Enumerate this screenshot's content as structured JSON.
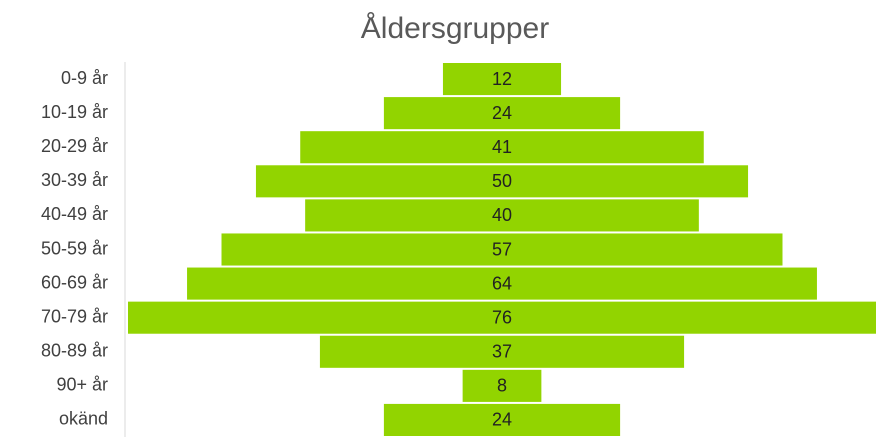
{
  "chart_data": {
    "type": "funnel",
    "title": "Åldersgrupper",
    "categories": [
      "0-9 år",
      "10-19 år",
      "20-29 år",
      "30-39 år",
      "40-49 år",
      "50-59 år",
      "60-69 år",
      "70-79 år",
      "80-89 år",
      "90+ år",
      "okänd"
    ],
    "values": [
      12,
      24,
      41,
      50,
      40,
      57,
      64,
      76,
      37,
      8,
      24
    ],
    "color": "#92d400"
  }
}
